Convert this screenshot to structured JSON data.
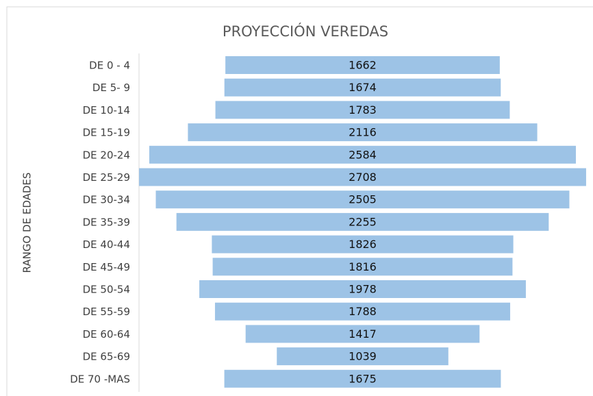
{
  "chart_data": {
    "type": "funnel",
    "title": "PROYECCIÓN VEREDAS",
    "y_label": "RANGO DE EDADES",
    "categories": [
      "DE 0 - 4",
      "DE 5- 9",
      "DE 10-14",
      "DE 15-19",
      "DE 20-24",
      "DE 25-29",
      "DE 30-34",
      "DE 35-39",
      "DE 40-44",
      "DE 45-49",
      "DE 50-54",
      "DE 55-59",
      "DE 60-64",
      "DE 65-69",
      "DE 70 -MAS"
    ],
    "values": [
      1662,
      1674,
      1783,
      2116,
      2584,
      2708,
      2505,
      2255,
      1826,
      1816,
      1978,
      1788,
      1417,
      1039,
      1675
    ],
    "color": "#9dc3e6"
  }
}
